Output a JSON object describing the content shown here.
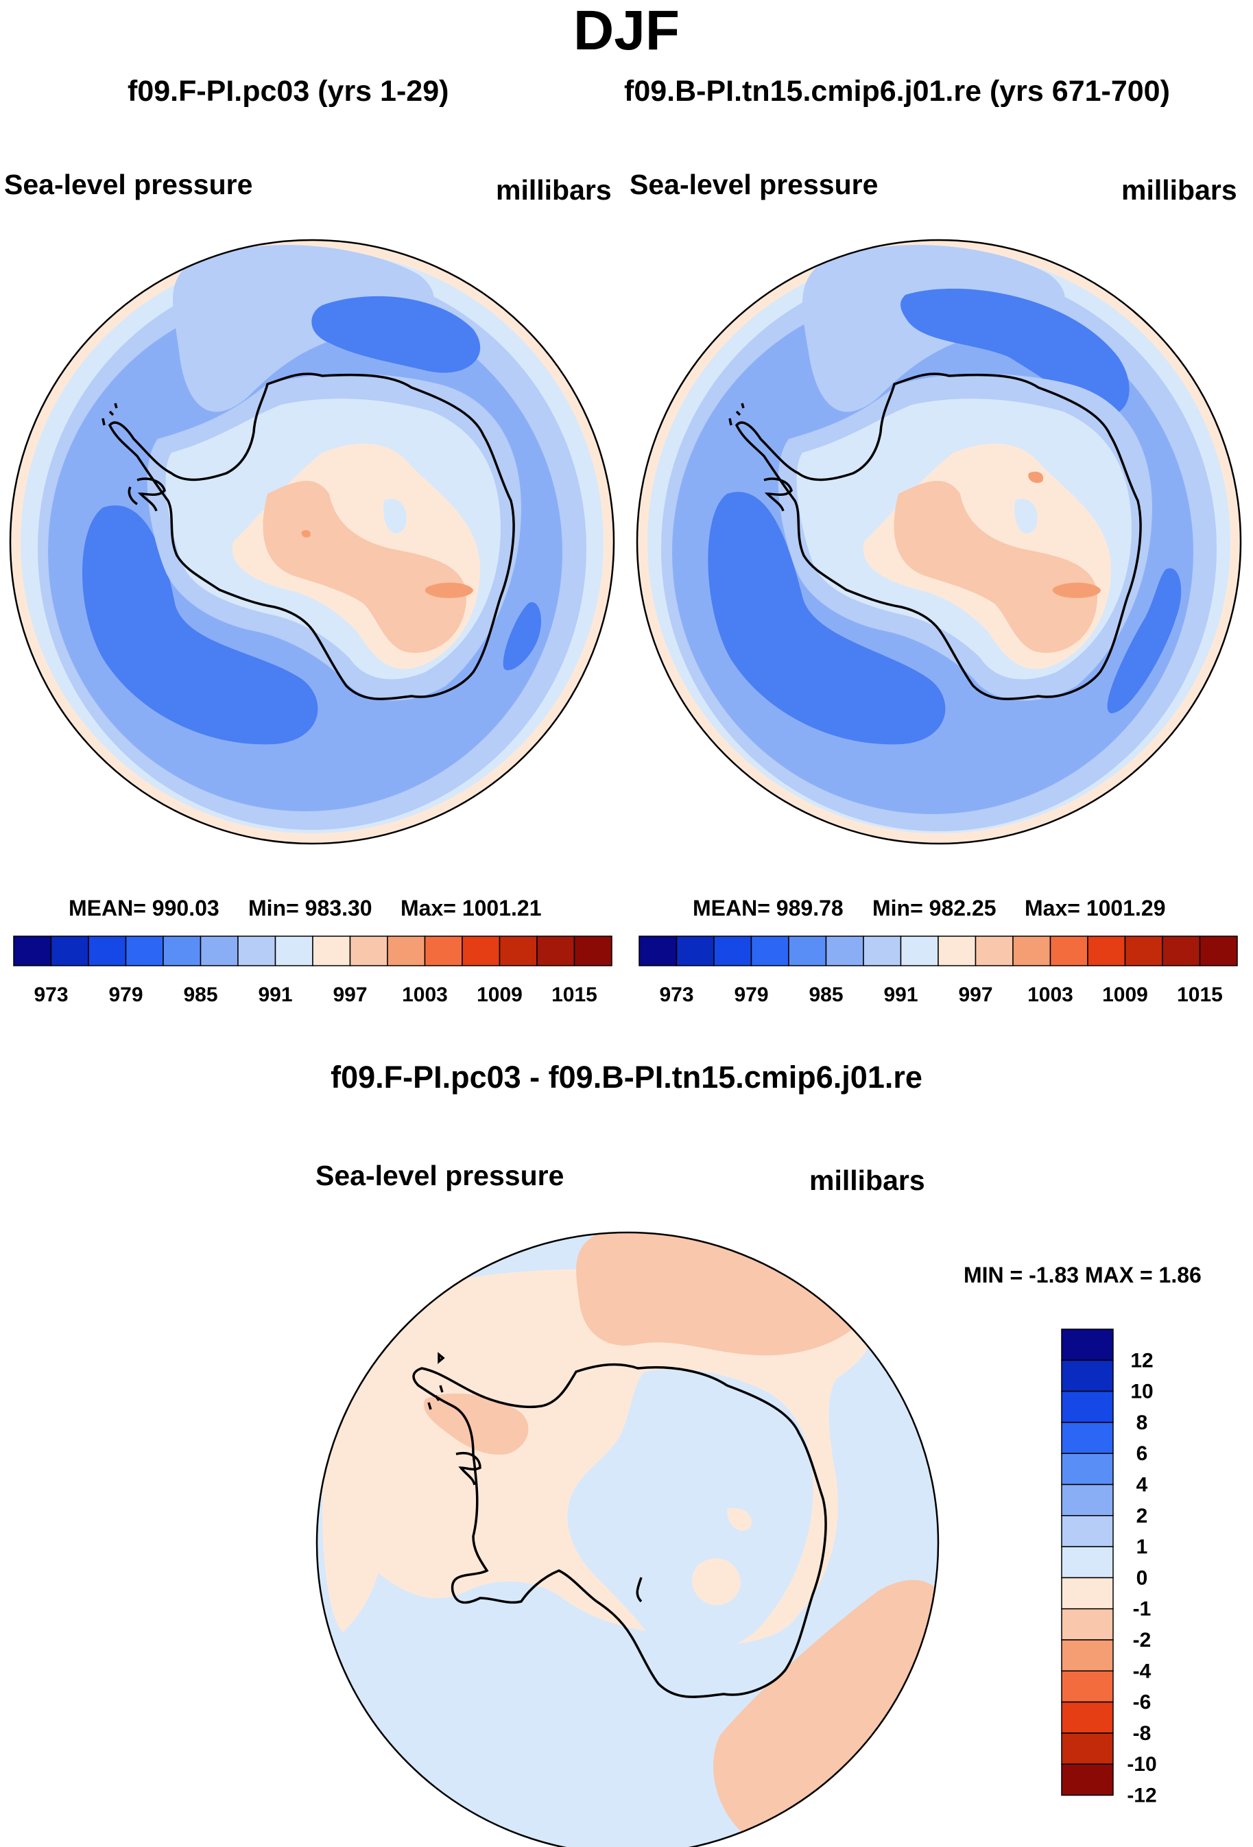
{
  "season": "DJF",
  "panels": [
    {
      "case": "f09.F-PI.pc03 (yrs 1-29)",
      "field": "Sea-level pressure",
      "units": "millibars",
      "mean_label": "MEAN= 990.03",
      "min_label": "Min= 983.30",
      "max_label": "Max= 1001.21"
    },
    {
      "case": "f09.B-PI.tn15.cmip6.j01.re (yrs 671-700)",
      "field": "Sea-level pressure",
      "units": "millibars",
      "mean_label": "MEAN= 989.78",
      "min_label": "Min= 982.25",
      "max_label": "Max= 1001.29"
    }
  ],
  "diff": {
    "title": "f09.F-PI.pc03 - f09.B-PI.tn15.cmip6.j01.re",
    "field": "Sea-level pressure",
    "units": "millibars",
    "minmax_label": "MIN =  -1.83 MAX =   1.86"
  },
  "abs_colorbar": {
    "colors": [
      "#08088a",
      "#0a2bc0",
      "#1548e6",
      "#2c66f5",
      "#5a8ef7",
      "#8aaef6",
      "#b5cdf7",
      "#d7e8fb",
      "#fde8d8",
      "#f9c7ab",
      "#f69e73",
      "#f36c3e",
      "#e53d14",
      "#c22a0a",
      "#a31809",
      "#8c0a06"
    ],
    "ticks": [
      "973",
      "979",
      "985",
      "991",
      "997",
      "1003",
      "1009",
      "1015"
    ]
  },
  "diff_colorbar": {
    "colors": [
      "#08088a",
      "#0a2bc0",
      "#1548e6",
      "#2c66f5",
      "#5a8ef7",
      "#8aaef6",
      "#b5cdf7",
      "#d7e8fb",
      "#fde8d8",
      "#f9c7ab",
      "#f69e73",
      "#f36c3e",
      "#e53d14",
      "#c22a0a",
      "#8c0a06"
    ],
    "ticks": [
      "12",
      "10",
      "8",
      "6",
      "4",
      "2",
      "1",
      "0",
      "-1",
      "-2",
      "-4",
      "-6",
      "-8",
      "-10",
      "-12"
    ]
  },
  "map_colors": {
    "outer": "#fde8d8",
    "ring1": "#d7e8fb",
    "ring2": "#b5cdf7",
    "ring3": "#8aaef6",
    "trough": "#4a7ef3",
    "land_low": "#b5cdf7",
    "land_mid": "#d7e8fb",
    "land_high": "#fde8d8",
    "land_peak": "#f9c7ab",
    "land_max": "#f69e73",
    "diff_base": "#d7e8fb",
    "diff_pos": "#fde8d8",
    "diff_pos2": "#f9c7ab",
    "diff_neg2": "#b5cdf7",
    "coast": "#000000"
  }
}
